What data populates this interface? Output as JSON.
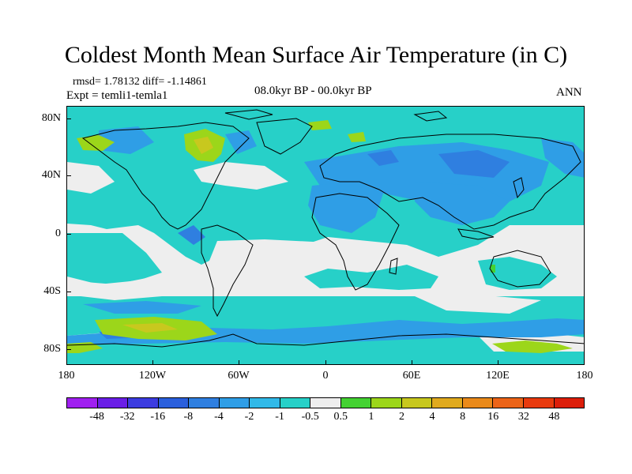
{
  "title": "Coldest Month Mean Surface Air Temperature (in C)",
  "stats": "rmsd= 1.78132 diff= -1.14861",
  "experiment": "Expt = temli1-temla1",
  "period": "08.0kyr BP - 00.0kyr BP",
  "season": "ANN",
  "lat_labels": [
    "80N",
    "40N",
    "0",
    "40S",
    "80S"
  ],
  "lon_labels": [
    "180",
    "120W",
    "60W",
    "0",
    "60E",
    "120E",
    "180"
  ],
  "colorbar": {
    "labels": [
      "-48",
      "-32",
      "-16",
      "-8",
      "-4",
      "-2",
      "-1",
      "-0.5",
      "0.5",
      "1",
      "2",
      "4",
      "8",
      "16",
      "32",
      "48"
    ],
    "colors": [
      "#a020f0",
      "#6a1ee6",
      "#3c3ce0",
      "#2a5fdc",
      "#2f7fe0",
      "#2f9ee6",
      "#31b9e8",
      "#27d0c8",
      "#eeeeee",
      "#44d232",
      "#9cd61a",
      "#c8c81e",
      "#e0aa1e",
      "#ea8a1a",
      "#ec6418",
      "#e83a0e",
      "#dc1e0a"
    ]
  }
}
